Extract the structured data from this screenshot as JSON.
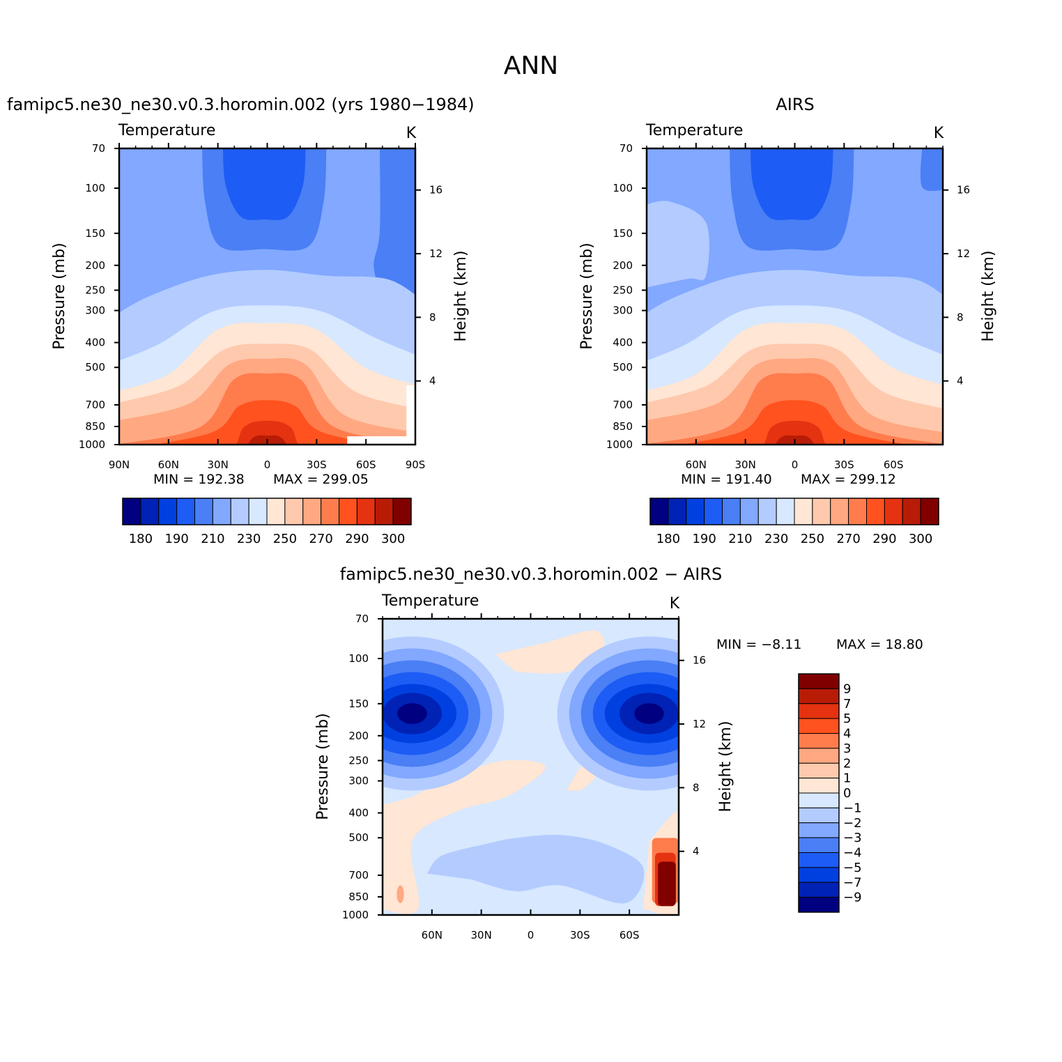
{
  "page_title": "ANN",
  "colors": {
    "abs_levels": [
      "#000080",
      "#0022b5",
      "#0040e0",
      "#1d5cf5",
      "#4a7ff5",
      "#82a8ff",
      "#b3cbff",
      "#d7e8ff",
      "#ffe6d5",
      "#ffc9ad",
      "#ffa882",
      "#ff7c4d",
      "#ff521e",
      "#e53210",
      "#b81c06",
      "#800000"
    ],
    "diff_levels": [
      "#000080",
      "#0022b5",
      "#0040e0",
      "#1d5cf5",
      "#4a7ff5",
      "#82a8ff",
      "#b3cbff",
      "#d7e8ff",
      "#ffe6d5",
      "#ffc9ad",
      "#ffa882",
      "#ff7c4d",
      "#ff521e",
      "#e53210",
      "#b81c06",
      "#800000"
    ]
  },
  "chart_data": [
    {
      "type": "heatmap",
      "id": "model",
      "title": "famipc5.ne30_ne30.v0.3.horomin.002 (yrs 1980−1984)",
      "left_label": "Temperature",
      "units": "K",
      "ylabel": "Pressure (mb)",
      "ylabel_right": "Height (km)",
      "x_ticks": [
        "90N",
        "60N",
        "30N",
        "0",
        "30S",
        "60S",
        "90S"
      ],
      "y_ticks": [
        "70",
        "100",
        "150",
        "200",
        "250",
        "300",
        "400",
        "500",
        "700",
        "850",
        "1000"
      ],
      "y2_ticks": [
        "16",
        "12",
        "8",
        "4"
      ],
      "min_text": "MIN = 192.38",
      "max_text": "MAX = 299.05",
      "colorbar_labels": [
        "180",
        "190",
        "210",
        "230",
        "250",
        "270",
        "290",
        "300"
      ]
    },
    {
      "type": "heatmap",
      "id": "obs",
      "title": "AIRS",
      "left_label": "Temperature",
      "units": "K",
      "ylabel": "Pressure (mb)",
      "ylabel_right": "Height (km)",
      "x_ticks": [
        "60N",
        "30N",
        "0",
        "30S",
        "60S"
      ],
      "y_ticks": [
        "70",
        "100",
        "150",
        "200",
        "250",
        "300",
        "400",
        "500",
        "700",
        "850",
        "1000"
      ],
      "y2_ticks": [
        "16",
        "12",
        "8",
        "4"
      ],
      "min_text": "MIN = 191.40",
      "max_text": "MAX = 299.12",
      "colorbar_labels": [
        "180",
        "190",
        "210",
        "230",
        "250",
        "270",
        "290",
        "300"
      ]
    },
    {
      "type": "heatmap",
      "id": "diff",
      "title": "famipc5.ne30_ne30.v0.3.horomin.002 − AIRS",
      "left_label": "Temperature",
      "units": "K",
      "ylabel": "Pressure (mb)",
      "ylabel_right": "Height (km)",
      "x_ticks": [
        "60N",
        "30N",
        "0",
        "30S",
        "60S"
      ],
      "y_ticks": [
        "70",
        "100",
        "150",
        "200",
        "250",
        "300",
        "400",
        "500",
        "700",
        "850",
        "1000"
      ],
      "y2_ticks": [
        "16",
        "12",
        "8",
        "4"
      ],
      "min_text": "MIN = −8.11",
      "max_text": "MAX = 18.80",
      "colorbar_labels": [
        "9",
        "7",
        "5",
        "4",
        "3",
        "2",
        "1",
        "0",
        "−1",
        "−2",
        "−3",
        "−4",
        "−5",
        "−7",
        "−9"
      ]
    }
  ]
}
